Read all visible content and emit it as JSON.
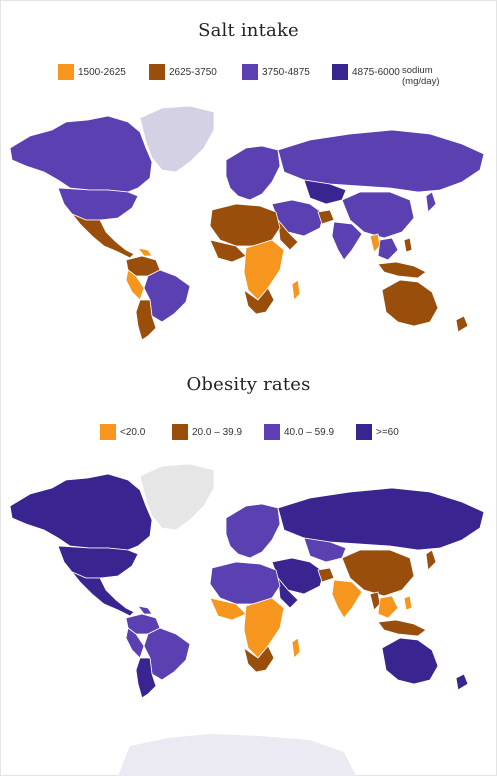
{
  "salt_map": {
    "title": "Salt intake",
    "unit_line1": "sodium",
    "unit_line2": "(mg/day)",
    "legend": [
      {
        "label": "1500-2625",
        "color": "#f7961e"
      },
      {
        "label": "2625-3750",
        "color": "#9a4e0c"
      },
      {
        "label": "3750-4875",
        "color": "#5b40b2"
      },
      {
        "label": "4875-6000",
        "color": "#3a2590"
      }
    ],
    "no_data_color": "#d4d1e4"
  },
  "obesity_map": {
    "title": "Obesity rates",
    "legend": [
      {
        "label": "<20.0",
        "color": "#f7961e"
      },
      {
        "label": "20.0 – 39.9",
        "color": "#9a4e0c"
      },
      {
        "label": "40.0 – 59.9",
        "color": "#5b40b2"
      },
      {
        "label": ">=60",
        "color": "#3a2590"
      }
    ],
    "no_data_color": "#e6e6e6"
  }
}
